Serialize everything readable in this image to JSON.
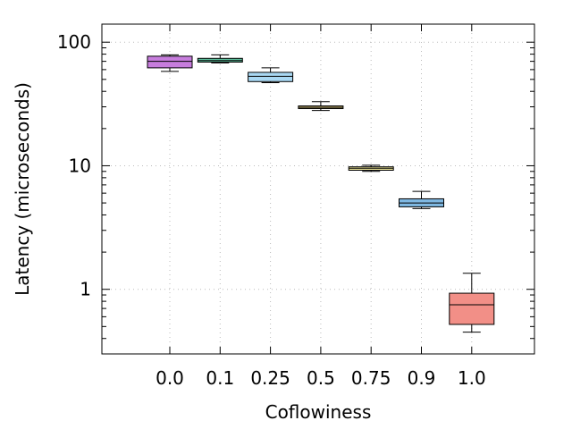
{
  "chart_data": {
    "type": "box",
    "xlabel": "Coflowiness",
    "ylabel": "Latency (microseconds)",
    "y_scale": "log",
    "ylim": [
      0.3,
      140
    ],
    "y_ticks": [
      {
        "value": 1,
        "label": "1"
      },
      {
        "value": 10,
        "label": "10"
      },
      {
        "value": 100,
        "label": "100"
      }
    ],
    "grid": true,
    "categories": [
      "0.0",
      "0.1",
      "0.25",
      "0.5",
      "0.75",
      "0.9",
      "1.0"
    ],
    "boxes": [
      {
        "category": "0.0",
        "min": 58,
        "q1": 62,
        "median": 70,
        "q3": 77,
        "max": 79,
        "color": "#c77ddd"
      },
      {
        "category": "0.1",
        "min": 68,
        "q1": 69,
        "median": 71,
        "q3": 74,
        "max": 79,
        "color": "#5ec29f"
      },
      {
        "category": "0.25",
        "min": 47,
        "q1": 48,
        "median": 53,
        "q3": 57,
        "max": 62,
        "color": "#a9d8f3"
      },
      {
        "category": "0.5",
        "min": 28,
        "q1": 29,
        "median": 29.7,
        "q3": 30.5,
        "max": 33,
        "color": "#d9c47e"
      },
      {
        "category": "0.75",
        "min": 9.0,
        "q1": 9.2,
        "median": 9.55,
        "q3": 9.8,
        "max": 10.1,
        "color": "#f4ec9f"
      },
      {
        "category": "0.9",
        "min": 4.5,
        "q1": 4.65,
        "median": 5.0,
        "q3": 5.4,
        "max": 6.2,
        "color": "#7fb8e2"
      },
      {
        "category": "1.0",
        "min": 0.45,
        "q1": 0.52,
        "median": 0.75,
        "q3": 0.93,
        "max": 1.35,
        "color": "#f28f87"
      }
    ]
  }
}
